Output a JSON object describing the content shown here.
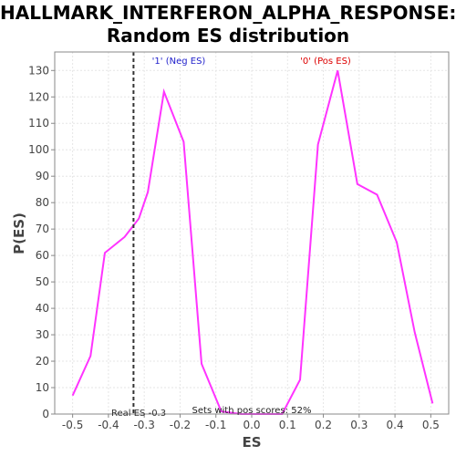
{
  "chart_data": {
    "type": "line",
    "title_line1": "HALLMARK_INTERFERON_ALPHA_RESPONSE:",
    "title_line2": "Random ES distribution",
    "xlabel": "ES",
    "ylabel": "P(ES)",
    "xlim": [
      -0.55,
      0.55
    ],
    "ylim": [
      0,
      137
    ],
    "xticks": [
      -0.5,
      -0.4,
      -0.3,
      -0.2,
      -0.1,
      0.0,
      0.1,
      0.2,
      0.3,
      0.4,
      0.5
    ],
    "xtick_labels": [
      "-0.5",
      "-0.4",
      "-0.3",
      "-0.2",
      "-0.1",
      "0.0",
      "0.1",
      "0.2",
      "0.3",
      "0.4",
      "0.5"
    ],
    "yticks": [
      0,
      10,
      20,
      30,
      40,
      50,
      60,
      70,
      80,
      90,
      100,
      110,
      120,
      130
    ],
    "grid": true,
    "series": [
      {
        "color": "#ff33ff",
        "x": [
          -0.5,
          -0.45,
          -0.41,
          -0.355,
          -0.315,
          -0.29,
          -0.245,
          -0.19,
          -0.14,
          -0.085,
          -0.03,
          0.025,
          0.085,
          0.135,
          0.185,
          0.24,
          0.295,
          0.35,
          0.405,
          0.455,
          0.505
        ],
        "y": [
          7,
          22,
          61,
          67,
          74,
          84,
          122,
          103,
          19,
          1,
          0,
          0,
          0,
          13,
          102,
          130,
          87,
          83,
          65,
          31,
          4
        ]
      }
    ],
    "real_es": -0.33,
    "real_es_color": "#333333",
    "annotations": {
      "neg_label": "'1' (Neg ES)",
      "neg_color": "#2222cc",
      "pos_label": "'0' (Pos ES)",
      "pos_color": "#dd0000",
      "real_es_label": "Real ES -0.3",
      "pos_scores_label": "Sets with pos scores: 52%"
    }
  }
}
